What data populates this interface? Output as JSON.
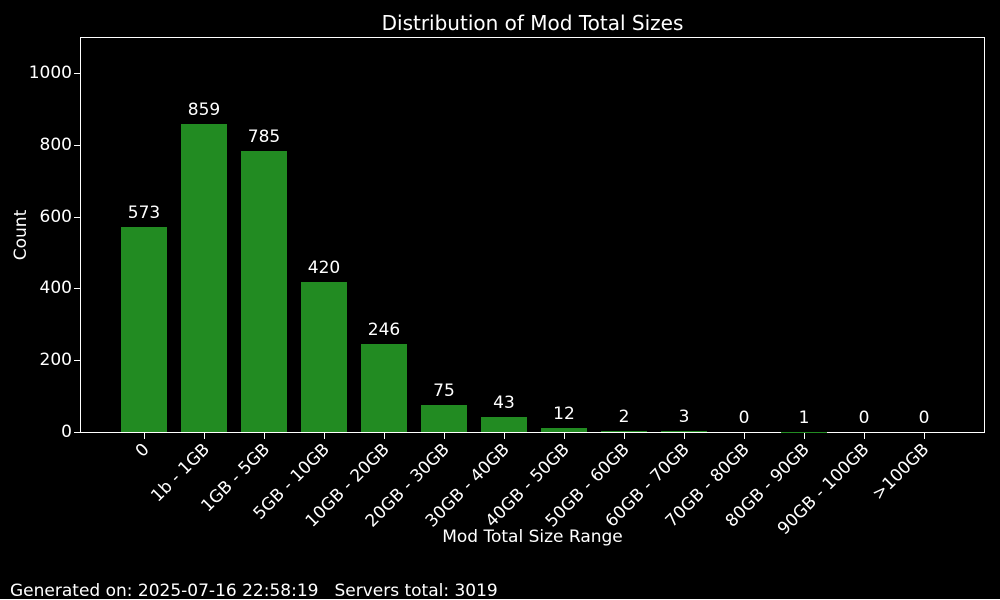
{
  "chart_data": {
    "type": "bar",
    "title": "Distribution of Mod Total Sizes",
    "xlabel": "Mod Total Size Range",
    "ylabel": "Count",
    "categories": [
      "0",
      "1b - 1GB",
      "1GB - 5GB",
      "5GB - 10GB",
      "10GB - 20GB",
      "20GB - 30GB",
      "30GB - 40GB",
      "40GB - 50GB",
      "50GB - 60GB",
      "60GB - 70GB",
      "70GB - 80GB",
      "80GB - 90GB",
      "90GB - 100GB",
      ">100GB"
    ],
    "values": [
      573,
      859,
      785,
      420,
      246,
      75,
      43,
      12,
      2,
      3,
      0,
      1,
      0,
      0
    ],
    "ylim": [
      0,
      1100
    ],
    "yticks": [
      0,
      200,
      400,
      600,
      800,
      1000
    ],
    "x_tick_rotation": 45,
    "grid": false,
    "legend": null,
    "colors": {
      "bar": "#228b22",
      "background": "#000000",
      "text": "#ffffff",
      "axis": "#ffffff"
    }
  },
  "footer": {
    "generated": "Generated on: 2025-07-16 22:58:19",
    "servers_total": "Servers total: 3019"
  }
}
